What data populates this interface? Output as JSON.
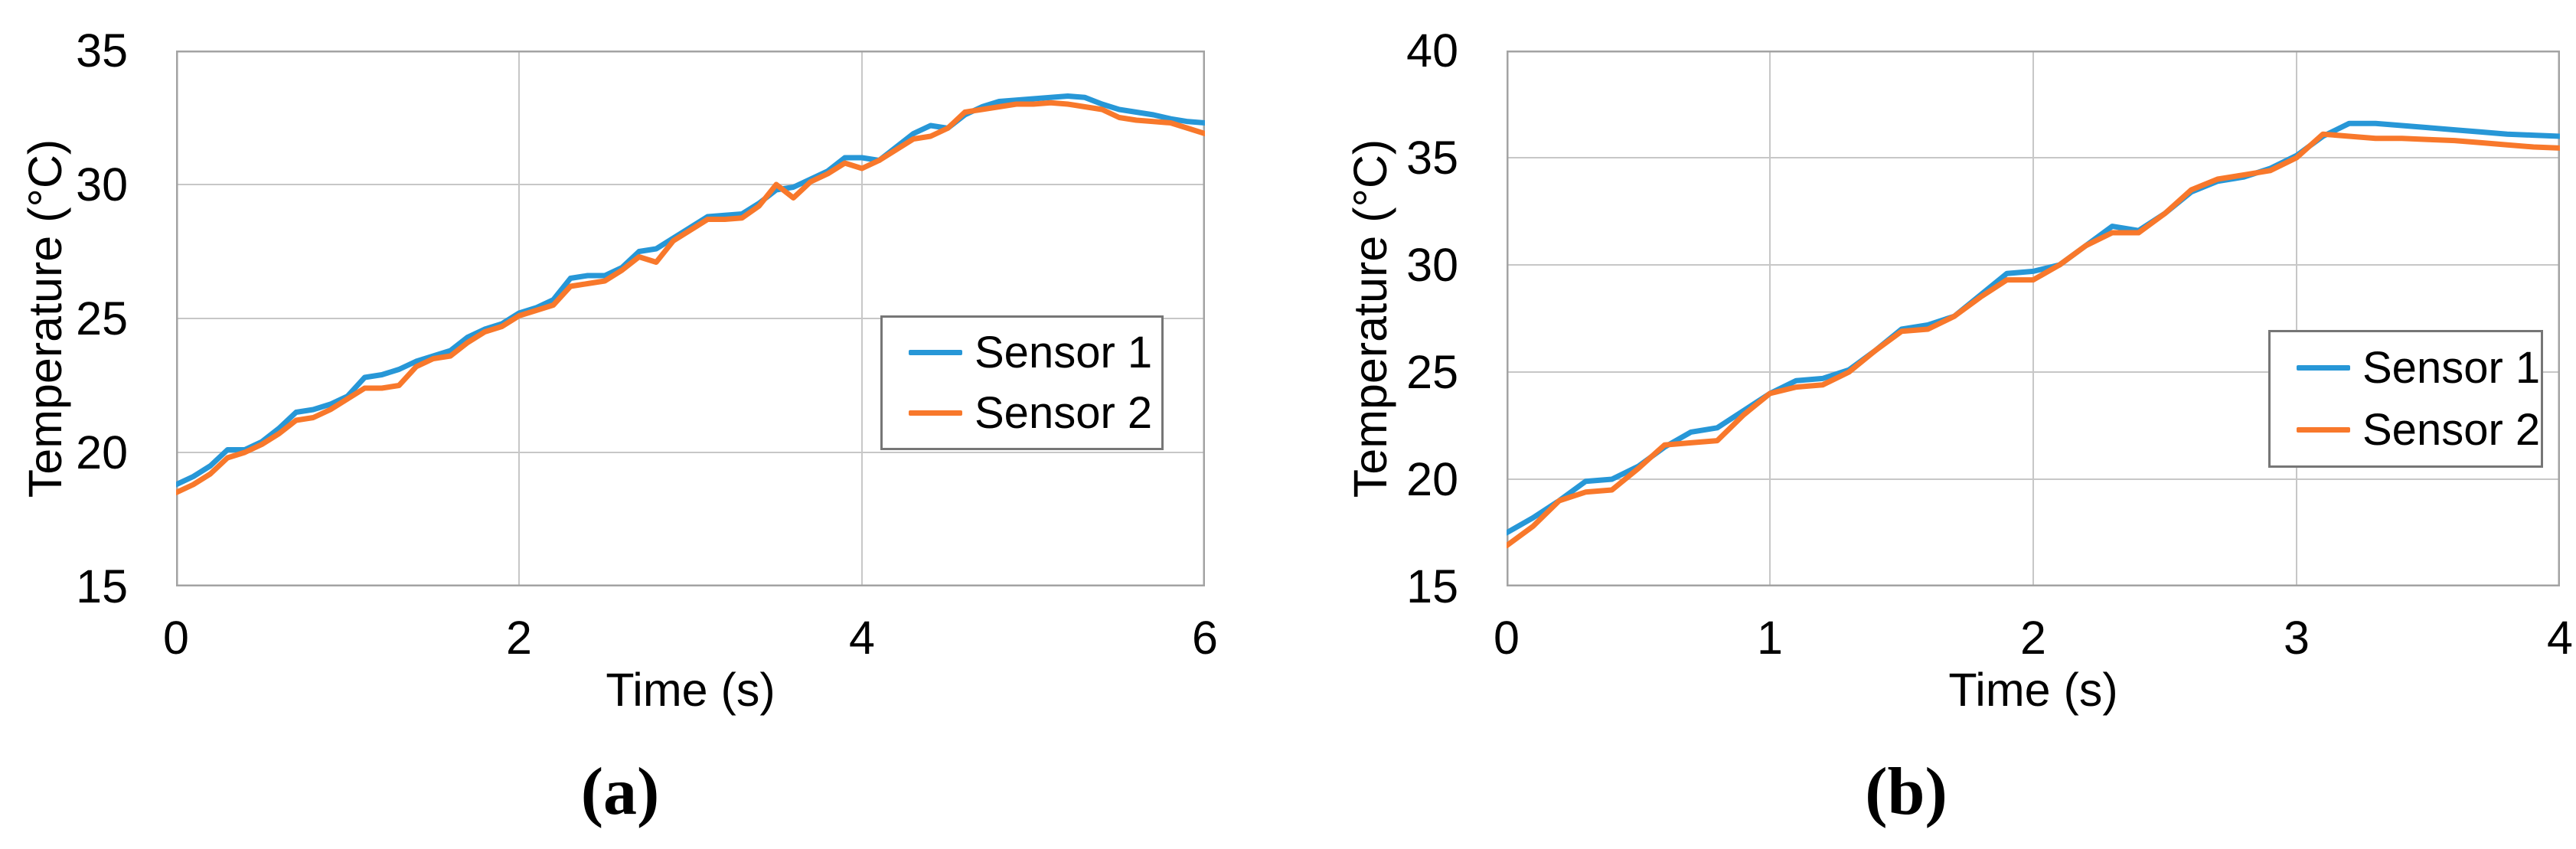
{
  "style": {
    "background": "#FFFFFF",
    "grid_color": "#C7C7C7",
    "frame_color": "#A3A3A3",
    "legend_border_color": "#767676",
    "text_color": "#000000"
  },
  "chart_data": [
    {
      "id": "a",
      "type": "line",
      "caption": "(a)",
      "xlabel": "Time (s)",
      "ylabel": "Temperature (°C)",
      "xlim": [
        0,
        6
      ],
      "ylim": [
        15,
        35
      ],
      "x_ticks": [
        0,
        2,
        4,
        6
      ],
      "y_ticks": [
        15,
        20,
        25,
        30,
        35
      ],
      "grid": true,
      "legend_position": "middle-right",
      "x_start": 0,
      "x_step": 0.1,
      "series": [
        {
          "name": "Sensor 1",
          "color": "#2797D7",
          "values": [
            18.8,
            19.1,
            19.5,
            20.1,
            20.1,
            20.4,
            20.9,
            21.5,
            21.6,
            21.8,
            22.1,
            22.8,
            22.9,
            23.1,
            23.4,
            23.6,
            23.8,
            24.3,
            24.6,
            24.8,
            25.2,
            25.4,
            25.7,
            26.5,
            26.6,
            26.6,
            26.9,
            27.5,
            27.6,
            28.0,
            28.4,
            28.8,
            28.85,
            28.9,
            29.3,
            29.8,
            29.9,
            30.2,
            30.5,
            31.0,
            31.0,
            30.9,
            31.4,
            31.9,
            32.2,
            32.1,
            32.6,
            32.9,
            33.1,
            33.15,
            33.2,
            33.25,
            33.3,
            33.25,
            33.0,
            32.8,
            32.7,
            32.6,
            32.45,
            32.35,
            32.3
          ]
        },
        {
          "name": "Sensor 2",
          "color": "#F8782B",
          "values": [
            18.5,
            18.8,
            19.2,
            19.8,
            20.0,
            20.3,
            20.7,
            21.2,
            21.3,
            21.6,
            22.0,
            22.4,
            22.4,
            22.5,
            23.2,
            23.5,
            23.6,
            24.1,
            24.5,
            24.7,
            25.1,
            25.3,
            25.5,
            26.2,
            26.3,
            26.4,
            26.8,
            27.3,
            27.1,
            27.9,
            28.3,
            28.7,
            28.7,
            28.75,
            29.2,
            30.0,
            29.5,
            30.1,
            30.4,
            30.8,
            30.6,
            30.9,
            31.3,
            31.7,
            31.8,
            32.1,
            32.7,
            32.8,
            32.9,
            33.0,
            33.0,
            33.05,
            33.0,
            32.9,
            32.8,
            32.5,
            32.4,
            32.35,
            32.3,
            32.1,
            31.9
          ]
        }
      ]
    },
    {
      "id": "b",
      "type": "line",
      "caption": "(b)",
      "xlabel": "Time (s)",
      "ylabel": "Temperature (°C)",
      "xlim": [
        0,
        4
      ],
      "ylim": [
        15,
        40
      ],
      "x_ticks": [
        0,
        1,
        2,
        3,
        4
      ],
      "y_ticks": [
        15,
        20,
        25,
        30,
        35,
        40
      ],
      "grid": true,
      "legend_position": "middle-right",
      "x_start": 0,
      "x_step": 0.1,
      "series": [
        {
          "name": "Sensor 1",
          "color": "#2797D7",
          "values": [
            17.5,
            18.2,
            19.0,
            19.9,
            20.0,
            20.6,
            21.5,
            22.2,
            22.4,
            23.2,
            24.0,
            24.6,
            24.7,
            25.1,
            26.0,
            27.0,
            27.2,
            27.6,
            28.6,
            29.6,
            29.7,
            30.0,
            30.9,
            31.8,
            31.6,
            32.4,
            33.4,
            33.9,
            34.1,
            34.5,
            35.1,
            36.0,
            36.6,
            36.6,
            36.5,
            36.4,
            36.3,
            36.2,
            36.1,
            36.05,
            36.0
          ]
        },
        {
          "name": "Sensor 2",
          "color": "#F8782B",
          "values": [
            16.9,
            17.8,
            19.0,
            19.4,
            19.5,
            20.5,
            21.6,
            21.7,
            21.8,
            23.0,
            24.0,
            24.3,
            24.4,
            25.0,
            26.0,
            26.9,
            27.0,
            27.6,
            28.5,
            29.3,
            29.3,
            30.0,
            30.9,
            31.5,
            31.5,
            32.4,
            33.5,
            34.0,
            34.2,
            34.4,
            35.0,
            36.1,
            36.0,
            35.9,
            35.9,
            35.85,
            35.8,
            35.7,
            35.6,
            35.5,
            35.45
          ]
        }
      ]
    }
  ]
}
